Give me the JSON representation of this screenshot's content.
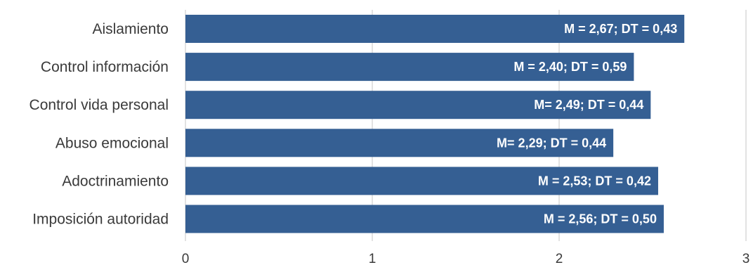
{
  "chart_data": {
    "type": "bar",
    "orientation": "horizontal",
    "categories": [
      "Aislamiento",
      "Control información",
      "Control vida personal",
      "Abuso emocional",
      "Adoctrinamiento",
      "Imposición autoridad"
    ],
    "values": [
      2.67,
      2.4,
      2.49,
      2.29,
      2.53,
      2.56
    ],
    "data_labels": [
      "M = 2,67; DT = 0,43",
      "M = 2,40; DT = 0,59",
      "M= 2,49; DT = 0,44",
      "M= 2,29; DT = 0,44",
      "M = 2,53; DT = 0,42",
      "M = 2,56; DT = 0,50"
    ],
    "xlim": [
      0,
      3
    ],
    "x_ticks": [
      0,
      1,
      2,
      3
    ],
    "x_tick_labels": [
      "0",
      "1",
      "2",
      "3"
    ],
    "title": "",
    "xlabel": "",
    "ylabel": "",
    "grid": true,
    "legend": false,
    "colors": {
      "bar": "#355f93",
      "grid": "#d9d9d9",
      "text": "#3a3a3a",
      "data_label": "#ffffff"
    }
  }
}
